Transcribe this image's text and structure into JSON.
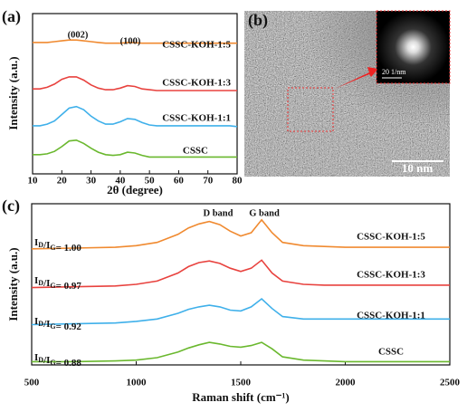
{
  "chart_data": [
    {
      "type": "line",
      "label": "(a)",
      "xlabel": "2θ (degree)",
      "ylabel": "Intensity (a.u.)",
      "x": [
        10,
        12.5,
        15,
        17.5,
        20,
        22.5,
        25,
        27.5,
        30,
        32.5,
        35,
        37.5,
        40,
        42.5,
        45,
        47.5,
        50,
        52.5,
        55,
        57.5,
        60,
        62.5,
        65,
        67.5,
        70,
        72.5,
        75,
        77.5,
        80
      ],
      "xlim": [
        10,
        80
      ],
      "xticks": [
        10,
        20,
        30,
        40,
        50,
        60,
        70,
        80
      ],
      "ylim": [
        0,
        100
      ],
      "annotations": [
        "(002)",
        "(100)"
      ],
      "series": [
        {
          "name": "CSSC-KOH-1:5",
          "color": "#f08a30",
          "values": [
            82,
            82,
            82,
            82.5,
            83,
            83.5,
            83.5,
            83,
            82.5,
            82,
            81.5,
            81.5,
            81.5,
            82,
            81.8,
            81.5,
            81.5,
            81.5,
            81.5,
            81.5,
            81.5,
            81.5,
            81.5,
            81.5,
            81.5,
            81.5,
            81.5,
            81.5,
            81.5
          ]
        },
        {
          "name": "CSSC-KOH-1:3",
          "color": "#e8423e",
          "values": [
            53,
            53,
            54,
            56,
            59,
            60.5,
            60.5,
            58.5,
            55.5,
            53.5,
            52.5,
            52.5,
            53.5,
            55,
            54.5,
            53,
            52.5,
            52,
            52,
            52,
            52,
            52,
            52,
            52,
            52,
            52,
            52,
            52,
            52
          ]
        },
        {
          "name": "CSSC-KOH-1:1",
          "color": "#3fb0ea",
          "values": [
            30,
            30,
            31,
            33,
            37,
            41,
            42,
            40,
            36,
            33,
            31,
            31,
            32.5,
            34.5,
            34,
            32,
            30.5,
            30,
            30,
            30,
            30,
            30,
            30,
            30,
            30,
            30,
            30,
            30,
            29.5
          ]
        },
        {
          "name": "CSSC",
          "color": "#6ab82e",
          "values": [
            12,
            12,
            12.5,
            14,
            17,
            20.5,
            21,
            19,
            16,
            13.5,
            12,
            11.5,
            12,
            13.5,
            13,
            11.5,
            10.5,
            10.5,
            10.5,
            10.5,
            10.5,
            10.5,
            10.5,
            10.5,
            10.5,
            10.5,
            10.5,
            10.5,
            10.5
          ]
        }
      ]
    },
    {
      "type": "line",
      "label": "(c)",
      "xlabel": "Raman shift (cm⁻¹)",
      "ylabel": "Intensity (a.u.)",
      "x": [
        500,
        700,
        900,
        1000,
        1100,
        1200,
        1250,
        1300,
        1350,
        1400,
        1450,
        1500,
        1550,
        1600,
        1650,
        1700,
        1800,
        1900,
        2000,
        2200,
        2500
      ],
      "xlim": [
        500,
        2500
      ],
      "xticks": [
        500,
        1000,
        1500,
        2000,
        2500
      ],
      "ylim": [
        0,
        100
      ],
      "annotations": [
        "D band",
        "G band",
        "ID/IG= 1.00",
        "ID/IG= 0.97",
        "ID/IG= 0.92",
        "ID/IG= 0.88"
      ],
      "series": [
        {
          "name": "CSSC-KOH-1:5",
          "color": "#f08a30",
          "values": [
            72,
            72.5,
            73,
            74,
            76,
            81,
            85,
            87.5,
            89,
            87,
            83,
            80,
            82,
            90,
            82,
            76,
            74,
            73.5,
            73,
            73,
            73
          ]
        },
        {
          "name": "CSSC-KOH-1:3",
          "color": "#e8423e",
          "values": [
            48,
            48.5,
            49,
            50,
            52,
            57,
            61,
            63.5,
            64.5,
            63,
            60,
            58,
            60,
            65,
            57,
            52,
            50,
            49.5,
            49.5,
            49.5,
            49.5
          ]
        },
        {
          "name": "CSSC-KOH-1:1",
          "color": "#3fb0ea",
          "values": [
            25,
            25.5,
            26,
            27,
            28.5,
            32,
            34.5,
            36,
            37,
            36,
            34,
            33.5,
            36,
            41,
            35,
            30,
            28.5,
            28.5,
            28.5,
            28.5,
            28.5
          ]
        },
        {
          "name": "CSSC",
          "color": "#6ab82e",
          "values": [
            2,
            2,
            2.5,
            3,
            4.5,
            8,
            10.5,
            12.5,
            14,
            13,
            11.5,
            11,
            12,
            14,
            10,
            5,
            3,
            2.5,
            2,
            2,
            2
          ]
        }
      ]
    }
  ],
  "image": {
    "label": "(b)",
    "inset_scale": "20 1/nm",
    "scale_bar": "10 nm"
  }
}
